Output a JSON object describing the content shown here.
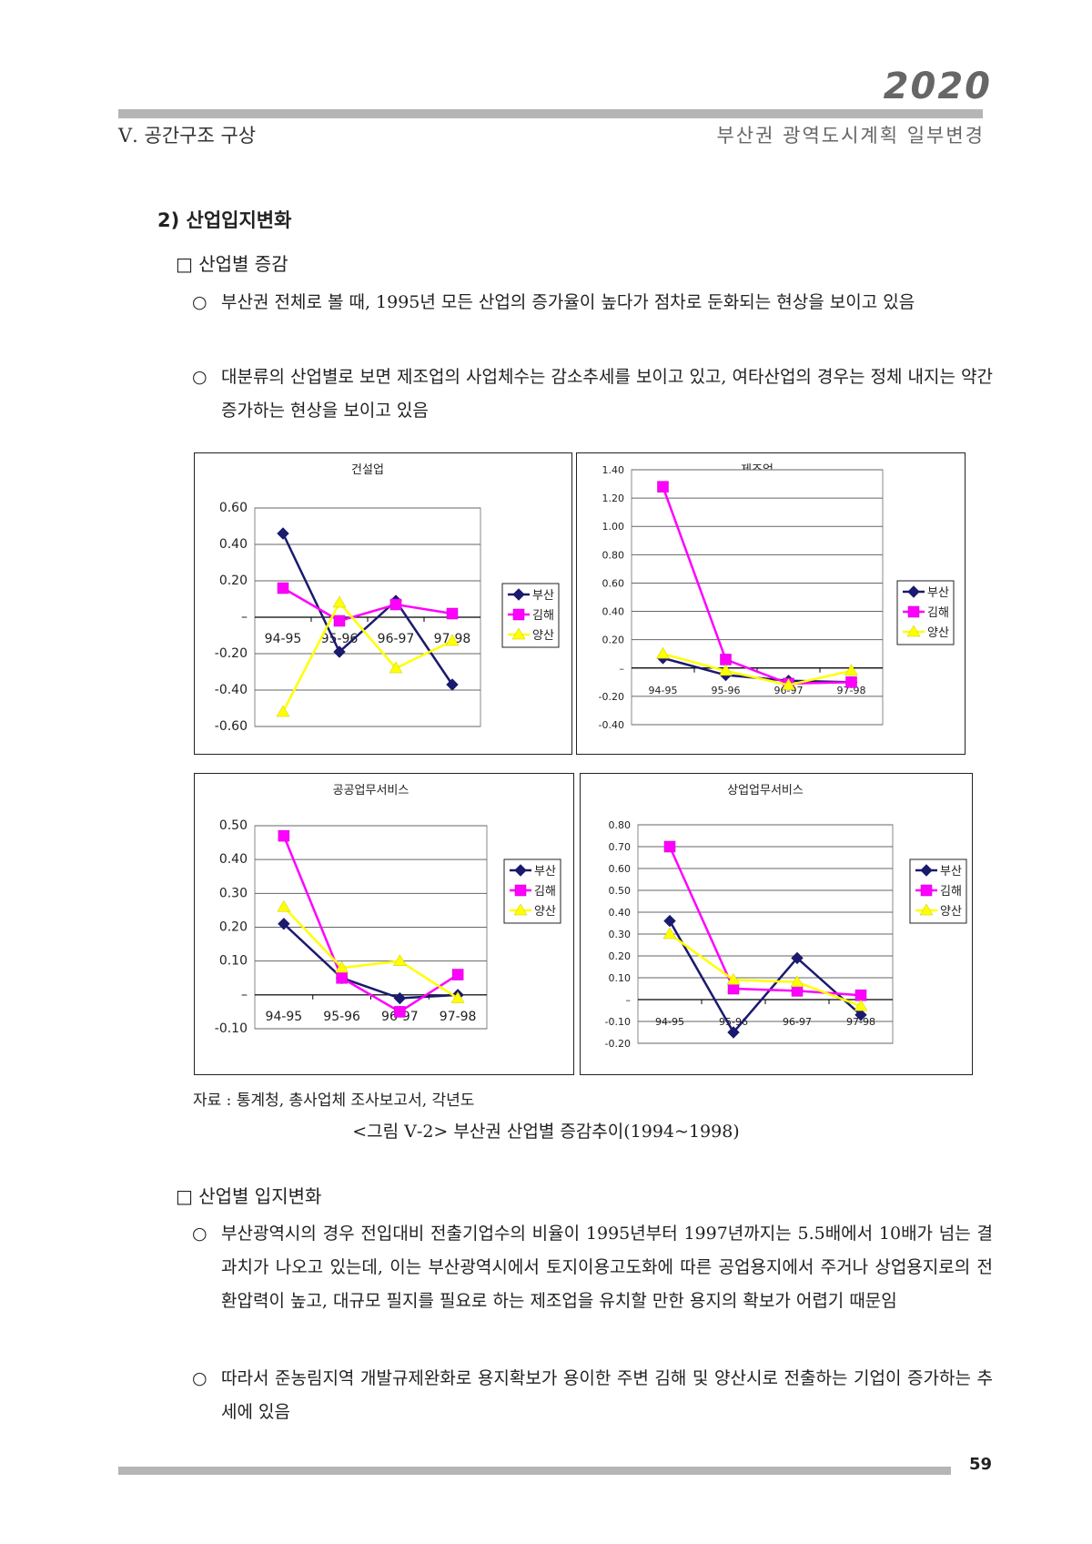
{
  "header": {
    "year": "2020",
    "section": "Ⅴ. 공간구조 구상",
    "plan_title": "부산권 광역도시계획 일부변경"
  },
  "body": {
    "heading": "2) 산업입지변화",
    "sub1": "□ 산업별 증감",
    "p1": "부산권 전체로 볼 때, 1995년 모든 산업의 증가율이 높다가 점차로 둔화되는 현상을 보이고 있음",
    "p2": "대분류의 산업별로 보면 제조업의 사업체수는 감소추세를 보이고 있고, 여타산업의 경우는 정체 내지는 약간 증가하는 현상을 보이고 있음",
    "source": "자료 : 통계청, 총사업체 조사보고서, 각년도",
    "caption": "<그림 Ⅴ-2> 부산권 산업별 증감추이(1994~1998)",
    "sub2": "□ 산업별 입지변화",
    "p3": "부산광역시의 경우 전입대비 전출기업수의 비율이 1995년부터 1997년까지는 5.5배에서 10배가 넘는 결과치가 나오고 있는데, 이는 부산광역시에서 토지이용고도화에 따른 공업용지에서 주거나 상업용지로의 전환압력이 높고, 대규모 필지를 필요로 하는 제조업을 유치할 만한 용지의 확보가 어렵기 때문임",
    "p4": "따라서 준농림지역 개발규제완화로 용지확보가 용이한 주변 김해 및 양산시로 전출하는 기업이 증가하는 추세에 있음",
    "bullet": "○"
  },
  "footer": {
    "page": "59"
  },
  "chart_data": [
    {
      "type": "line",
      "title": "건설업",
      "categories": [
        "94-95",
        "95-96",
        "96-97",
        "97-98"
      ],
      "series": [
        {
          "name": "부산",
          "values": [
            0.46,
            -0.19,
            0.09,
            -0.37
          ]
        },
        {
          "name": "김해",
          "values": [
            0.16,
            -0.02,
            0.07,
            0.02
          ]
        },
        {
          "name": "양산",
          "values": [
            -0.52,
            0.08,
            -0.28,
            -0.13
          ]
        }
      ],
      "ylim": [
        -0.6,
        0.6
      ],
      "yticks": [
        "0.60",
        "0.40",
        "0.20",
        "–",
        "-0.20",
        "-0.40",
        "-0.60"
      ],
      "legend": "right"
    },
    {
      "type": "line",
      "title": "제조업",
      "categories": [
        "94-95",
        "95-96",
        "96-97",
        "97-98"
      ],
      "series": [
        {
          "name": "부산",
          "values": [
            0.07,
            -0.05,
            -0.09,
            -0.1
          ]
        },
        {
          "name": "김해",
          "values": [
            1.28,
            0.06,
            -0.11,
            -0.1
          ]
        },
        {
          "name": "양산",
          "values": [
            0.1,
            -0.02,
            -0.12,
            -0.02
          ]
        }
      ],
      "ylim": [
        -0.4,
        1.4
      ],
      "yticks": [
        "1.40",
        "1.20",
        "1.00",
        "0.80",
        "0.60",
        "0.40",
        "0.20",
        "–",
        "-0.20",
        "-0.40"
      ],
      "legend": "right"
    },
    {
      "type": "line",
      "title": "공공업무서비스",
      "categories": [
        "94-95",
        "95-96",
        "96-97",
        "97-98"
      ],
      "series": [
        {
          "name": "부산",
          "values": [
            0.21,
            0.05,
            -0.01,
            0.0
          ]
        },
        {
          "name": "김해",
          "values": [
            0.47,
            0.05,
            -0.05,
            0.06
          ]
        },
        {
          "name": "양산",
          "values": [
            0.26,
            0.08,
            0.1,
            -0.01
          ]
        }
      ],
      "ylim": [
        -0.1,
        0.5
      ],
      "yticks": [
        "0.50",
        "0.40",
        "0.30",
        "0.20",
        "0.10",
        "–",
        "-0.10"
      ],
      "legend": "right"
    },
    {
      "type": "line",
      "title": "상업업무서비스",
      "categories": [
        "94-95",
        "95-96",
        "96-97",
        "97-98"
      ],
      "series": [
        {
          "name": "부산",
          "values": [
            0.36,
            -0.15,
            0.19,
            -0.07
          ]
        },
        {
          "name": "김해",
          "values": [
            0.7,
            0.05,
            0.04,
            0.02
          ]
        },
        {
          "name": "양산",
          "values": [
            0.3,
            0.09,
            0.08,
            -0.03
          ]
        }
      ],
      "ylim": [
        -0.2,
        0.8
      ],
      "yticks": [
        "0.80",
        "0.70",
        "0.60",
        "0.50",
        "0.40",
        "0.30",
        "0.20",
        "0.10",
        "–",
        "-0.10",
        "-0.20"
      ],
      "legend": "right"
    }
  ],
  "colors": {
    "busan": "#1a1a6e",
    "gimhae": "#ff00ff",
    "yangsan": "#ffff00"
  }
}
